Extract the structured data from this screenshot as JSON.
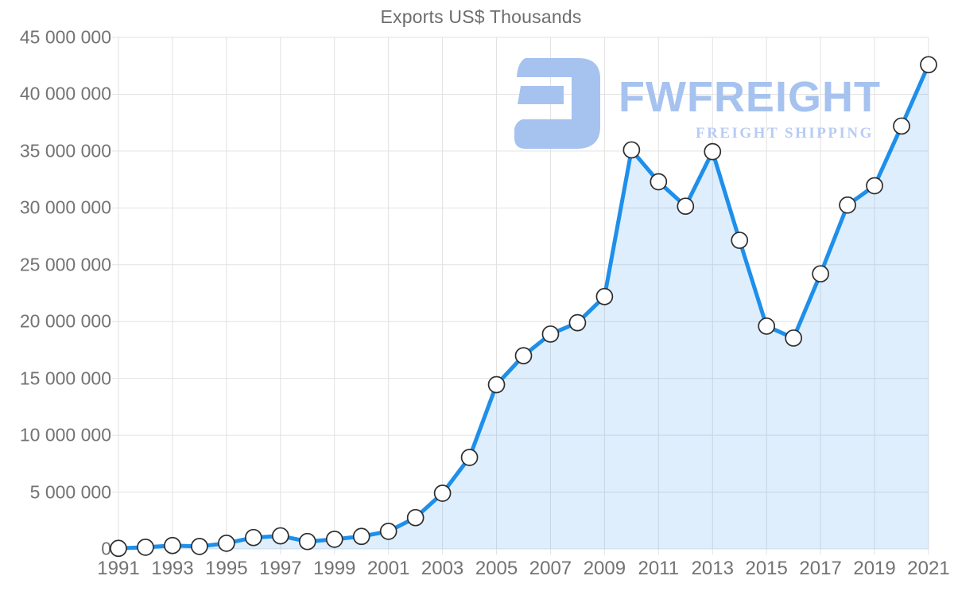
{
  "chart_data": {
    "type": "line",
    "title": "Exports US$ Thousands",
    "x": [
      1991,
      1992,
      1993,
      1994,
      1995,
      1996,
      1997,
      1998,
      1999,
      2000,
      2001,
      2002,
      2003,
      2004,
      2005,
      2006,
      2007,
      2008,
      2009,
      2010,
      2011,
      2012,
      2013,
      2014,
      2015,
      2016,
      2017,
      2018,
      2019,
      2020,
      2021
    ],
    "series": [
      {
        "name": "Exports US$ Thousands",
        "values": [
          50000,
          150000,
          300000,
          220000,
          500000,
          1000000,
          1150000,
          650000,
          850000,
          1100000,
          1550000,
          2750000,
          4900000,
          8050000,
          14450000,
          17000000,
          18900000,
          19900000,
          22200000,
          35100000,
          32300000,
          30150000,
          34950000,
          27150000,
          19600000,
          18550000,
          24200000,
          30250000,
          31950000,
          37200000,
          42600000
        ]
      }
    ],
    "ylim": [
      0,
      45000000
    ],
    "y_tick_step": 5000000,
    "y_ticks": [
      "0",
      "5 000 000",
      "10 000 000",
      "15 000 000",
      "20 000 000",
      "25 000 000",
      "30 000 000",
      "35 000 000",
      "40 000 000",
      "45 000 000"
    ],
    "x_ticks": [
      "1991",
      "1993",
      "1995",
      "1997",
      "1999",
      "2001",
      "2003",
      "2005",
      "2007",
      "2009",
      "2011",
      "2013",
      "2015",
      "2017",
      "2019",
      "2021"
    ],
    "grid": true,
    "legend_position": "none",
    "line_color": "#1e8feb",
    "fill_color": "rgba(33,144,240,0.15)",
    "marker_fill": "#ffffff",
    "marker_stroke": "#2e2e2e",
    "grid_color": "#e2e2e2",
    "axis_label_color": "#737373",
    "title_color": "#6d6d6d"
  },
  "watermark": {
    "brand": "FWFREIGHT",
    "tagline": "FREIGHT SHIPPING",
    "icon": "fwfreight-logo-icon",
    "brand_color": "#a6c2ef",
    "tagline_color": "#b8cbf3"
  }
}
